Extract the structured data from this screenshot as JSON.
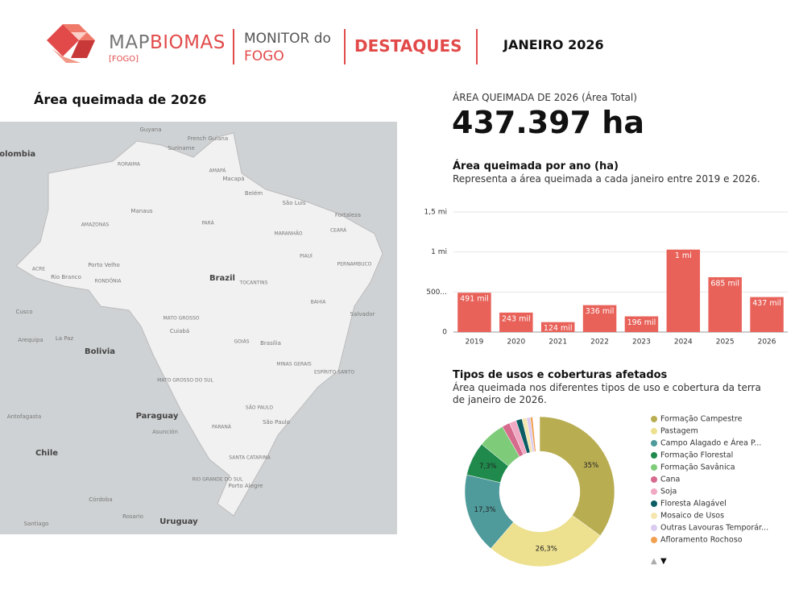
{
  "header": {
    "brand_a": "MAP",
    "brand_b": "BIOMAS",
    "brand_sub": "[FOGO]",
    "monitor": "MONITOR do",
    "monitor_b": "FOGO",
    "section": "DESTAQUES",
    "period": "JANEIRO 2026"
  },
  "map": {
    "title": "Área queimada de 2026",
    "labels": [
      "Guyana",
      "Suriname",
      "French Guiana",
      "Colombia",
      "RORAIMA",
      "AMAPÁ",
      "Macapá",
      "Belém",
      "São Luís",
      "Fortaleza",
      "Manaus",
      "AMAZONAS",
      "PARÁ",
      "MARANHÃO",
      "CEARÁ",
      "PIAUÍ",
      "PERNAMBUCO",
      "Porto Velho",
      "Rio Branco",
      "ACRE",
      "RONDÔNIA",
      "Brazil",
      "TOCANTINS",
      "BAHIA",
      "Salvador",
      "MATO GROSSO",
      "Cuiabá",
      "GOIÁS",
      "Brasília",
      "Cusco",
      "La Paz",
      "Arequipa",
      "Bolivia",
      "MINAS GERAIS",
      "MATO GROSSO DO SUL",
      "ESPÍRITO SANTO",
      "Paraguay",
      "Asunción",
      "SÃO PAULO",
      "São Paulo",
      "PARANÁ",
      "SANTA CATARINA",
      "Antofagasta",
      "Chile",
      "RIO GRANDE DO SUL",
      "Porto Alegre",
      "Córdoba",
      "Rosario",
      "Uruguay",
      "Santiago"
    ]
  },
  "kpi": {
    "label": "ÁREA QUEIMADA DE 2026 (Área Total)",
    "value": "437.397 ha"
  },
  "chart_data": [
    {
      "type": "bar",
      "title": "Área queimada por ano (ha)",
      "subtitle": "Representa a área queimada a cada janeiro entre 2019 e 2026.",
      "categories": [
        "2019",
        "2020",
        "2021",
        "2022",
        "2023",
        "2024",
        "2025",
        "2026"
      ],
      "values": [
        491000,
        243000,
        124000,
        336000,
        196000,
        1030000,
        685000,
        437000
      ],
      "value_labels": [
        "491 mil",
        "243 mil",
        "124 mil",
        "336 mil",
        "196 mil",
        "1 mi",
        "685 mil",
        "437 mil"
      ],
      "color": "#e8625a",
      "ylim": [
        0,
        1500000
      ],
      "yticks": [
        0,
        {
          "value": 500000,
          "label": "500..."
        },
        {
          "value": 1000000,
          "label": "1 mi"
        },
        {
          "value": 1500000,
          "label": "1,5 mi"
        }
      ],
      "grid": true
    },
    {
      "type": "pie",
      "donut": true,
      "title": "Tipos de usos e coberturas afetados",
      "subtitle": "Área queimada nos diferentes tipos de uso e cobertura da terra de janeiro de 2026.",
      "categories": [
        "Formação Campestre",
        "Pastagem",
        "Campo Alagado e Área P...",
        "Formação Florestal",
        "Formação Savânica",
        "Cana",
        "Soja",
        "Floresta Alagável",
        "Mosaico de Usos",
        "Outras Lavouras Temporár...",
        "Afloramento Rochoso"
      ],
      "values": [
        35,
        26.3,
        17.3,
        7.3,
        5.8,
        1.7,
        1.5,
        1.3,
        1.0,
        0.8,
        0.5
      ],
      "value_labels": [
        "35%",
        "26,3%",
        "17,3%",
        "7,3%",
        null,
        null,
        null,
        null,
        null,
        null,
        null
      ],
      "colors": [
        "#b9ad52",
        "#ede08f",
        "#4f9a9a",
        "#1f8a4c",
        "#7ecb7a",
        "#d66b8e",
        "#f0a8c3",
        "#0b5c63",
        "#f5e6b0",
        "#dccbf0",
        "#f0a050"
      ],
      "legend": "right",
      "legend_pager": [
        "▲",
        "▼"
      ]
    }
  ]
}
